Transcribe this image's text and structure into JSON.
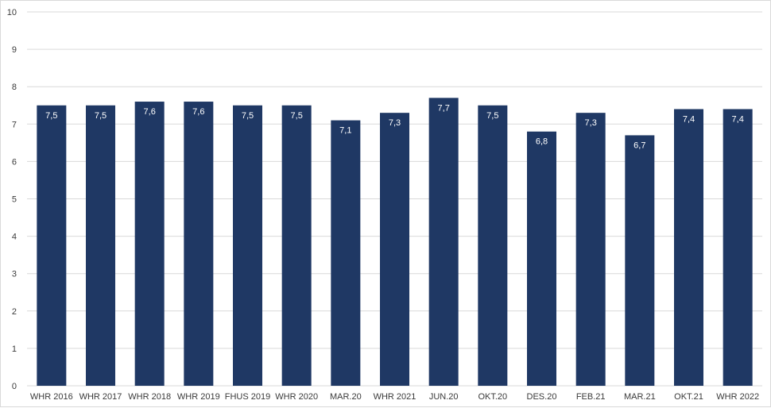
{
  "chart_data": {
    "type": "bar",
    "categories": [
      "WHR 2016",
      "WHR 2017",
      "WHR 2018",
      "WHR 2019",
      "FHUS 2019",
      "WHR 2020",
      "MAR.20",
      "WHR 2021",
      "JUN.20",
      "OKT.20",
      "DES.20",
      "FEB.21",
      "MAR.21",
      "OKT.21",
      "WHR 2022"
    ],
    "values": [
      7.5,
      7.5,
      7.6,
      7.6,
      7.5,
      7.5,
      7.1,
      7.3,
      7.7,
      7.5,
      6.8,
      7.3,
      6.7,
      7.4,
      7.4
    ],
    "value_labels": [
      "7,5",
      "7,5",
      "7,6",
      "7,6",
      "7,5",
      "7,5",
      "7,1",
      "7,3",
      "7,7",
      "7,5",
      "6,8",
      "7,3",
      "6,7",
      "7,4",
      "7,4"
    ],
    "y_ticks": [
      0,
      1,
      2,
      3,
      4,
      5,
      6,
      7,
      8,
      9,
      10
    ],
    "ylim": [
      0,
      10
    ],
    "title": "",
    "xlabel": "",
    "ylabel": "",
    "grid": true,
    "bar_color": "#1f3864",
    "grid_color": "#d9d9d9"
  }
}
